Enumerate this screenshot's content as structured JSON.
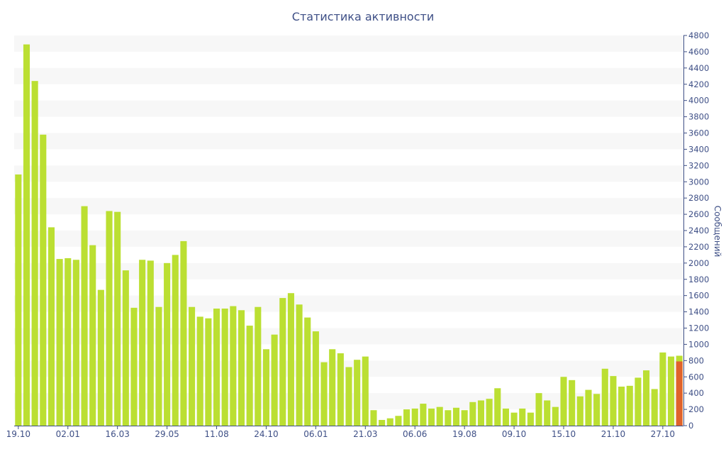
{
  "chart_data": {
    "type": "bar",
    "title": "Статистика активности",
    "xlabel": "",
    "ylabel": "Сообщений",
    "ylim": [
      0,
      4800
    ],
    "yticks": [
      0,
      200,
      400,
      600,
      800,
      1000,
      1200,
      1400,
      1600,
      1800,
      2000,
      2200,
      2400,
      2600,
      2800,
      3000,
      3200,
      3400,
      3600,
      3800,
      4000,
      4200,
      4400,
      4600,
      4800
    ],
    "x_tick_labels": [
      {
        "index": 0,
        "label": "19.10"
      },
      {
        "index": 6,
        "label": "02.01"
      },
      {
        "index": 12,
        "label": "16.03"
      },
      {
        "index": 18,
        "label": "29.05"
      },
      {
        "index": 24,
        "label": "11.08"
      },
      {
        "index": 30,
        "label": "24.10"
      },
      {
        "index": 36,
        "label": "06.01"
      },
      {
        "index": 42,
        "label": "21.03"
      },
      {
        "index": 48,
        "label": "06.06"
      },
      {
        "index": 54,
        "label": "19.08"
      },
      {
        "index": 60,
        "label": "09.10"
      },
      {
        "index": 66,
        "label": "15.10"
      },
      {
        "index": 72,
        "label": "21.10"
      },
      {
        "index": 78,
        "label": "27.10"
      }
    ],
    "grid": "horizontal-bands",
    "colors": {
      "bar": "#bbdf32",
      "highlight": "#e0622c",
      "axis": "#3e4f86",
      "band": "#f7f7f7"
    },
    "values": [
      3090,
      4690,
      4240,
      3580,
      2440,
      2050,
      2060,
      2040,
      2700,
      2220,
      1670,
      2640,
      2630,
      1910,
      1450,
      2040,
      2030,
      1460,
      2000,
      2100,
      2270,
      1460,
      1340,
      1320,
      1440,
      1440,
      1470,
      1420,
      1230,
      1460,
      940,
      1120,
      1570,
      1630,
      1490,
      1330,
      1160,
      780,
      940,
      890,
      720,
      810,
      850,
      190,
      70,
      90,
      120,
      200,
      210,
      270,
      210,
      230,
      190,
      220,
      190,
      290,
      310,
      330,
      460,
      210,
      160,
      210,
      160,
      400,
      310,
      230,
      600,
      560,
      360,
      440,
      390,
      700,
      610,
      480,
      490,
      590,
      680,
      450,
      900,
      850,
      860
    ],
    "last_bar_highlight": 790
  }
}
